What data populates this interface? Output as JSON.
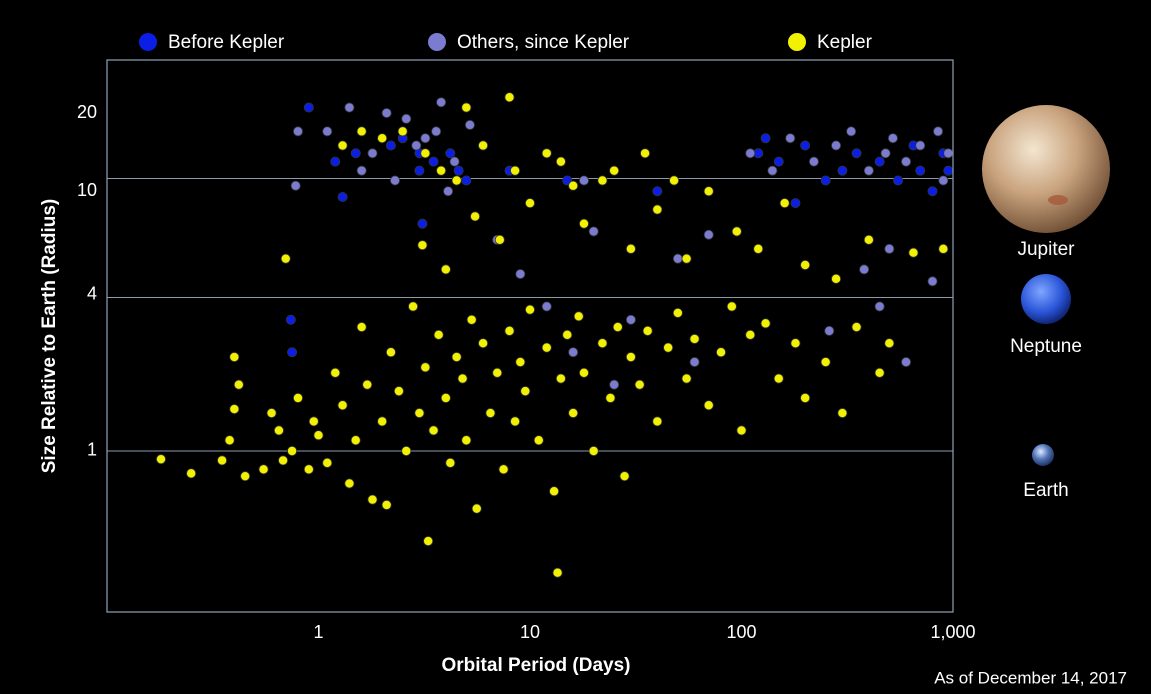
{
  "chart_data": {
    "type": "scatter",
    "x_label": "Orbital Period (Days)",
    "y_label": "Size Relative to Earth (Radius)",
    "note": "As of December 14, 2017",
    "xscale": "log",
    "yscale": "log",
    "xlim": [
      0.1,
      1000
    ],
    "ylim": [
      0.24,
      32
    ],
    "xticks": [
      1,
      10,
      100,
      {
        "value": 1000,
        "label": "1,000"
      }
    ],
    "yticks": [
      1,
      4,
      10,
      20
    ],
    "legend": "top",
    "planets": [
      {
        "name": "Jupiter",
        "radius": 11.2
      },
      {
        "name": "Neptune",
        "radius": 3.9
      },
      {
        "name": "Earth",
        "radius": 1
      }
    ],
    "series": [
      {
        "name": "Before Kepler",
        "color": "#0a1ee6",
        "x": [
          0.9,
          1.2,
          1.5,
          2.2,
          3.0,
          3.5,
          4.2,
          4.6,
          2.5,
          3.1,
          1.3,
          5.0,
          0.74,
          0.75,
          3.0,
          8,
          15,
          40,
          120,
          150,
          200,
          300,
          350,
          450,
          550,
          650,
          800,
          900,
          950,
          250,
          130,
          600,
          180,
          700
        ],
        "values": [
          21,
          13,
          14,
          15,
          12,
          13,
          14,
          12,
          16,
          7.5,
          9.5,
          11,
          3.2,
          2.4,
          14,
          12,
          11,
          10,
          14,
          13,
          15,
          12,
          14,
          13,
          11,
          15,
          10,
          14,
          12,
          11,
          16,
          13,
          9,
          12
        ]
      },
      {
        "name": "Others, since Kepler",
        "color": "#7b7bd0",
        "x": [
          1.1,
          1.4,
          1.8,
          2.1,
          2.6,
          3.2,
          3.8,
          4.4,
          5.2,
          6.0,
          1.6,
          2.3,
          2.9,
          3.6,
          4.1,
          0.8,
          0.78,
          7,
          9,
          12,
          20,
          30,
          50,
          70,
          110,
          140,
          170,
          220,
          280,
          330,
          400,
          480,
          520,
          600,
          700,
          850,
          950,
          260,
          380,
          450,
          800,
          60,
          25,
          16,
          18,
          600,
          500,
          900
        ],
        "values": [
          17,
          21,
          14,
          20,
          19,
          16,
          22,
          13,
          18,
          15,
          12,
          11,
          15,
          17,
          10,
          17,
          10.5,
          6.5,
          4.8,
          3.6,
          7,
          3.2,
          5.5,
          6.8,
          14,
          12,
          16,
          13,
          15,
          17,
          12,
          14,
          16,
          13,
          15,
          17,
          14,
          2.9,
          5,
          3.6,
          4.5,
          2.2,
          1.8,
          2.4,
          11,
          2.2,
          6,
          11
        ]
      },
      {
        "name": "Kepler",
        "color": "#f2f200",
        "x": [
          0.18,
          0.25,
          0.35,
          0.38,
          0.4,
          0.4,
          0.42,
          0.45,
          0.55,
          0.6,
          0.65,
          0.68,
          0.7,
          0.75,
          0.8,
          0.9,
          0.95,
          1.0,
          1.1,
          1.2,
          1.3,
          1.4,
          1.5,
          1.6,
          1.7,
          1.8,
          2.0,
          2.1,
          2.2,
          2.4,
          2.6,
          2.8,
          3.0,
          3.2,
          3.3,
          3.5,
          3.7,
          4.0,
          4.2,
          4.5,
          4.8,
          5.0,
          5.3,
          5.6,
          6.0,
          6.5,
          7.0,
          7.5,
          8.0,
          8.5,
          9,
          9.5,
          10,
          11,
          12,
          13,
          13.5,
          14,
          15,
          16,
          17,
          18,
          20,
          22,
          24,
          26,
          28,
          30,
          33,
          36,
          40,
          45,
          50,
          55,
          60,
          70,
          80,
          90,
          100,
          110,
          130,
          150,
          180,
          200,
          250,
          300,
          350,
          450,
          500,
          3.1,
          4.0,
          5.5,
          7.2,
          8.5,
          10,
          14,
          18,
          22,
          30,
          40,
          55,
          70,
          95,
          120,
          160,
          200,
          280,
          400,
          650,
          900,
          1.3,
          1.6,
          2.0,
          2.5,
          3.2,
          3.8,
          4.5,
          5,
          8,
          6,
          12,
          16,
          25,
          35,
          48
        ],
        "values": [
          0.93,
          0.82,
          0.92,
          1.1,
          1.45,
          2.3,
          1.8,
          0.8,
          0.85,
          1.4,
          1.2,
          0.92,
          5.5,
          1.0,
          1.6,
          0.85,
          1.3,
          1.15,
          0.9,
          2.0,
          1.5,
          0.75,
          1.1,
          3.0,
          1.8,
          0.65,
          1.3,
          0.62,
          2.4,
          1.7,
          1.0,
          3.6,
          1.4,
          2.1,
          0.45,
          1.2,
          2.8,
          1.6,
          0.9,
          2.3,
          1.9,
          1.1,
          3.2,
          0.6,
          2.6,
          1.4,
          2.0,
          0.85,
          2.9,
          1.3,
          2.2,
          1.7,
          3.5,
          1.1,
          2.5,
          0.7,
          0.34,
          1.9,
          2.8,
          1.4,
          3.3,
          2.0,
          1.0,
          2.6,
          1.6,
          3.0,
          0.8,
          2.3,
          1.8,
          2.9,
          1.3,
          2.5,
          3.4,
          1.9,
          2.7,
          1.5,
          2.4,
          3.6,
          1.2,
          2.8,
          3.1,
          1.9,
          2.6,
          1.6,
          2.2,
          1.4,
          3.0,
          2.0,
          2.6,
          6.2,
          5.0,
          8,
          6.5,
          12,
          9,
          13,
          7.5,
          11,
          6,
          8.5,
          5.5,
          10,
          7,
          6,
          9,
          5.2,
          4.6,
          6.5,
          5.8,
          6,
          15,
          17,
          16,
          17,
          14,
          12,
          11,
          21,
          23,
          15,
          14,
          10.5,
          12,
          14,
          11
        ]
      }
    ]
  }
}
